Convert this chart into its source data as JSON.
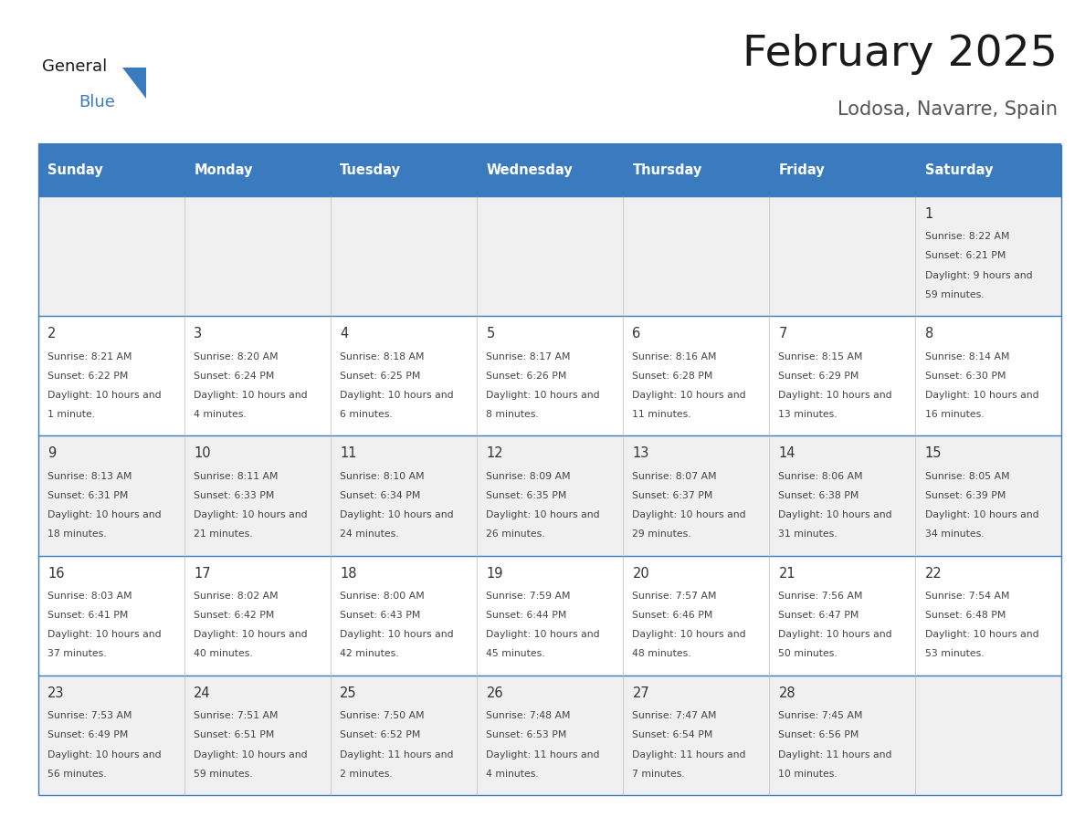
{
  "title": "February 2025",
  "subtitle": "Lodosa, Navarre, Spain",
  "header_bg": "#3a7abf",
  "header_text_color": "#ffffff",
  "header_days": [
    "Sunday",
    "Monday",
    "Tuesday",
    "Wednesday",
    "Thursday",
    "Friday",
    "Saturday"
  ],
  "cell_bg_even": "#f0f0f0",
  "cell_bg_odd": "#ffffff",
  "cell_text_color": "#444444",
  "day_num_color": "#333333",
  "title_color": "#1a1a1a",
  "subtitle_color": "#555555",
  "line_color": "#3a7abf",
  "logo_general_color": "#1a1a1a",
  "logo_blue_color": "#3a7abf",
  "logo_triangle_color": "#3a7abf",
  "calendar_data": [
    [
      null,
      null,
      null,
      null,
      null,
      null,
      {
        "day": 1,
        "sunrise": "8:22 AM",
        "sunset": "6:21 PM",
        "daylight": "9 hours and 59 minutes."
      }
    ],
    [
      {
        "day": 2,
        "sunrise": "8:21 AM",
        "sunset": "6:22 PM",
        "daylight": "10 hours and 1 minute."
      },
      {
        "day": 3,
        "sunrise": "8:20 AM",
        "sunset": "6:24 PM",
        "daylight": "10 hours and 4 minutes."
      },
      {
        "day": 4,
        "sunrise": "8:18 AM",
        "sunset": "6:25 PM",
        "daylight": "10 hours and 6 minutes."
      },
      {
        "day": 5,
        "sunrise": "8:17 AM",
        "sunset": "6:26 PM",
        "daylight": "10 hours and 8 minutes."
      },
      {
        "day": 6,
        "sunrise": "8:16 AM",
        "sunset": "6:28 PM",
        "daylight": "10 hours and 11 minutes."
      },
      {
        "day": 7,
        "sunrise": "8:15 AM",
        "sunset": "6:29 PM",
        "daylight": "10 hours and 13 minutes."
      },
      {
        "day": 8,
        "sunrise": "8:14 AM",
        "sunset": "6:30 PM",
        "daylight": "10 hours and 16 minutes."
      }
    ],
    [
      {
        "day": 9,
        "sunrise": "8:13 AM",
        "sunset": "6:31 PM",
        "daylight": "10 hours and 18 minutes."
      },
      {
        "day": 10,
        "sunrise": "8:11 AM",
        "sunset": "6:33 PM",
        "daylight": "10 hours and 21 minutes."
      },
      {
        "day": 11,
        "sunrise": "8:10 AM",
        "sunset": "6:34 PM",
        "daylight": "10 hours and 24 minutes."
      },
      {
        "day": 12,
        "sunrise": "8:09 AM",
        "sunset": "6:35 PM",
        "daylight": "10 hours and 26 minutes."
      },
      {
        "day": 13,
        "sunrise": "8:07 AM",
        "sunset": "6:37 PM",
        "daylight": "10 hours and 29 minutes."
      },
      {
        "day": 14,
        "sunrise": "8:06 AM",
        "sunset": "6:38 PM",
        "daylight": "10 hours and 31 minutes."
      },
      {
        "day": 15,
        "sunrise": "8:05 AM",
        "sunset": "6:39 PM",
        "daylight": "10 hours and 34 minutes."
      }
    ],
    [
      {
        "day": 16,
        "sunrise": "8:03 AM",
        "sunset": "6:41 PM",
        "daylight": "10 hours and 37 minutes."
      },
      {
        "day": 17,
        "sunrise": "8:02 AM",
        "sunset": "6:42 PM",
        "daylight": "10 hours and 40 minutes."
      },
      {
        "day": 18,
        "sunrise": "8:00 AM",
        "sunset": "6:43 PM",
        "daylight": "10 hours and 42 minutes."
      },
      {
        "day": 19,
        "sunrise": "7:59 AM",
        "sunset": "6:44 PM",
        "daylight": "10 hours and 45 minutes."
      },
      {
        "day": 20,
        "sunrise": "7:57 AM",
        "sunset": "6:46 PM",
        "daylight": "10 hours and 48 minutes."
      },
      {
        "day": 21,
        "sunrise": "7:56 AM",
        "sunset": "6:47 PM",
        "daylight": "10 hours and 50 minutes."
      },
      {
        "day": 22,
        "sunrise": "7:54 AM",
        "sunset": "6:48 PM",
        "daylight": "10 hours and 53 minutes."
      }
    ],
    [
      {
        "day": 23,
        "sunrise": "7:53 AM",
        "sunset": "6:49 PM",
        "daylight": "10 hours and 56 minutes."
      },
      {
        "day": 24,
        "sunrise": "7:51 AM",
        "sunset": "6:51 PM",
        "daylight": "10 hours and 59 minutes."
      },
      {
        "day": 25,
        "sunrise": "7:50 AM",
        "sunset": "6:52 PM",
        "daylight": "11 hours and 2 minutes."
      },
      {
        "day": 26,
        "sunrise": "7:48 AM",
        "sunset": "6:53 PM",
        "daylight": "11 hours and 4 minutes."
      },
      {
        "day": 27,
        "sunrise": "7:47 AM",
        "sunset": "6:54 PM",
        "daylight": "11 hours and 7 minutes."
      },
      {
        "day": 28,
        "sunrise": "7:45 AM",
        "sunset": "6:56 PM",
        "daylight": "11 hours and 10 minutes."
      },
      null
    ]
  ]
}
